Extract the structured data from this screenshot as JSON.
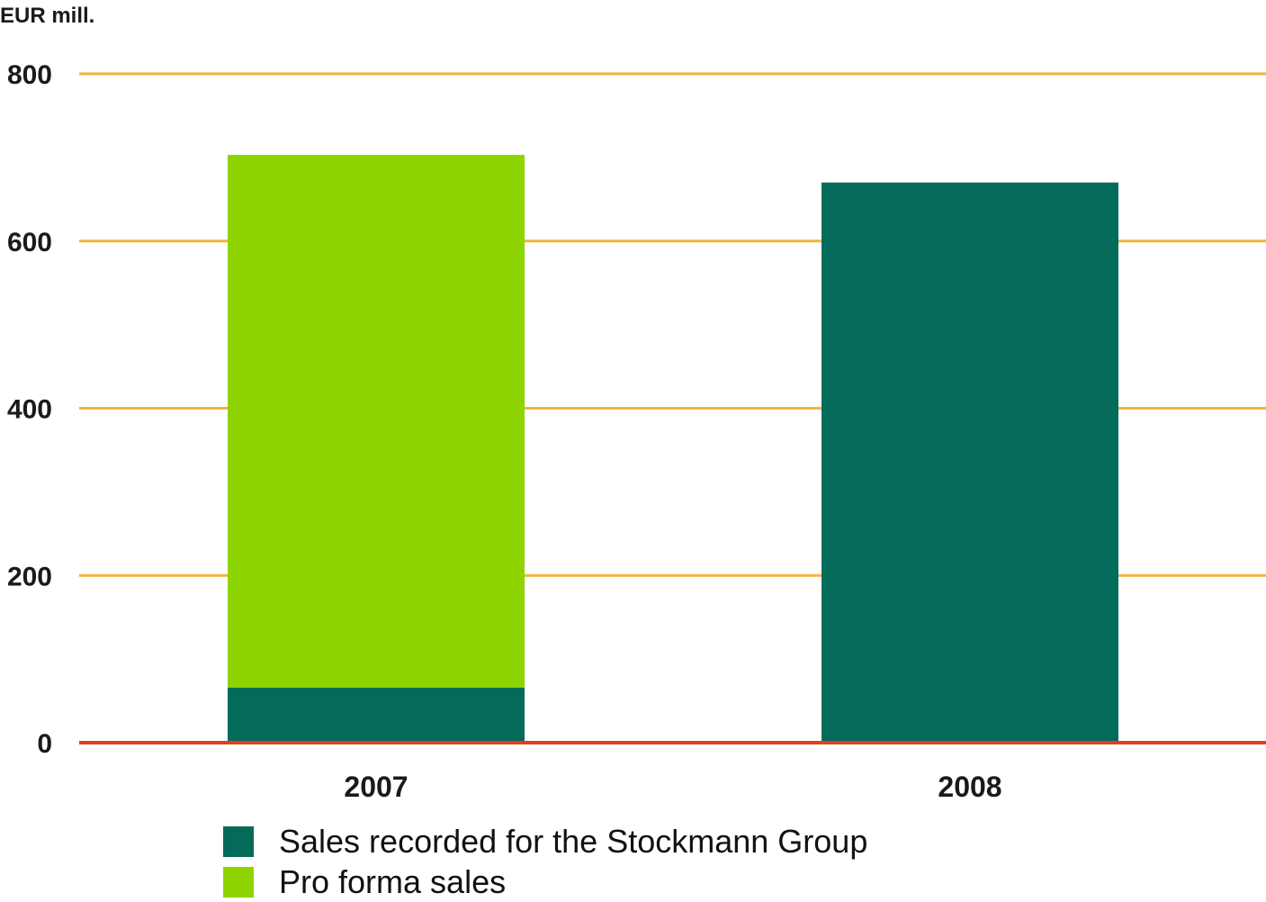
{
  "chart_data": {
    "type": "bar",
    "stacked": true,
    "unit_label": "EUR mill.",
    "categories": [
      "2007",
      "2008"
    ],
    "series": [
      {
        "name": "Sales recorded for the Stockmann Group",
        "color": "#046b5a",
        "values": [
          66,
          670
        ]
      },
      {
        "name": "Pro forma sales",
        "color": "#8ed400",
        "values": [
          637,
          0
        ]
      }
    ],
    "ylim": [
      0,
      800
    ],
    "yticks": [
      0,
      200,
      400,
      600,
      800
    ],
    "grid": true,
    "grid_color": "#f2b43c",
    "baseline_color": "#e0401e",
    "legend_position": "bottom-left"
  }
}
